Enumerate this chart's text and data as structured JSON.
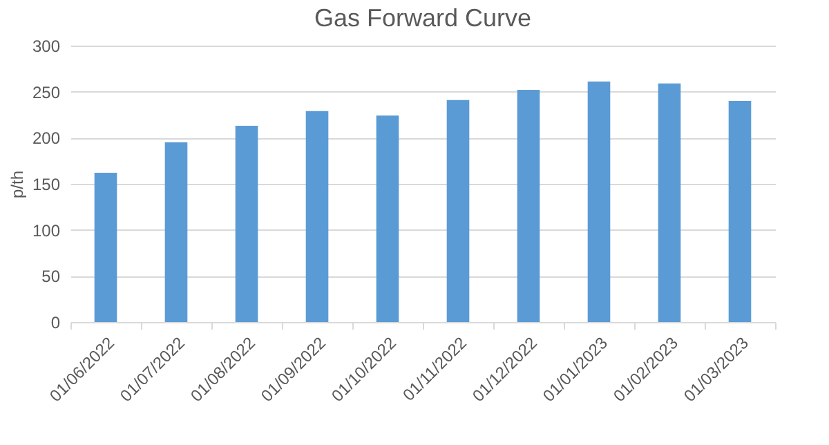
{
  "chart_data": {
    "type": "bar",
    "title": "Gas Forward Curve",
    "ylabel": "p/th",
    "categories": [
      "01/06/2022",
      "01/07/2022",
      "01/08/2022",
      "01/09/2022",
      "01/10/2022",
      "01/11/2022",
      "01/12/2022",
      "01/01/2023",
      "01/02/2023",
      "01/03/2023"
    ],
    "values": [
      162,
      195,
      213,
      229,
      224,
      241,
      252,
      261,
      259,
      240
    ],
    "color": "#5b9bd5",
    "ylim": [
      0,
      300
    ],
    "yticks": [
      0,
      50,
      100,
      150,
      200,
      250,
      300
    ],
    "grid": "y"
  }
}
